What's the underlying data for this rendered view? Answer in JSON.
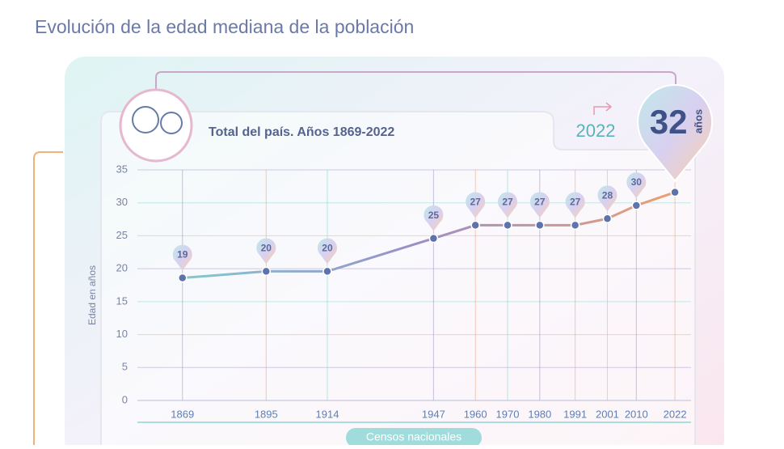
{
  "chart_data": {
    "type": "line",
    "title": "Evolución de la edad mediana de la población",
    "subtitle": "Total del país. Años 1869-2022",
    "y_label": "Edad en años",
    "x_label": "Censos nacionales",
    "highlight": {
      "year": "2022",
      "value": "32",
      "unit": "años"
    },
    "x": [
      1869,
      1895,
      1914,
      1947,
      1960,
      1970,
      1980,
      1991,
      2001,
      2010,
      2022
    ],
    "xticks": [
      1869,
      1895,
      1914,
      1947,
      1960,
      1970,
      1980,
      1991,
      2001,
      2010,
      2022
    ],
    "xlim": [
      1855,
      2027
    ],
    "series": [
      {
        "name": "Edad mediana",
        "colors": [
          "#7fd3d0",
          "#9a8fc8",
          "#f2a06c"
        ],
        "values": [
          18.6,
          19.6,
          19.6,
          24.6,
          26.6,
          26.6,
          26.6,
          26.6,
          27.6,
          29.6,
          31.6
        ],
        "value_labels": [
          "19",
          "20",
          "20",
          "25",
          "27",
          "27",
          "27",
          "27",
          "28",
          "30",
          "32"
        ]
      }
    ],
    "ylim": [
      0,
      35
    ],
    "yticks": [
      0,
      5,
      10,
      15,
      20,
      25,
      30,
      35
    ],
    "grid": true
  }
}
